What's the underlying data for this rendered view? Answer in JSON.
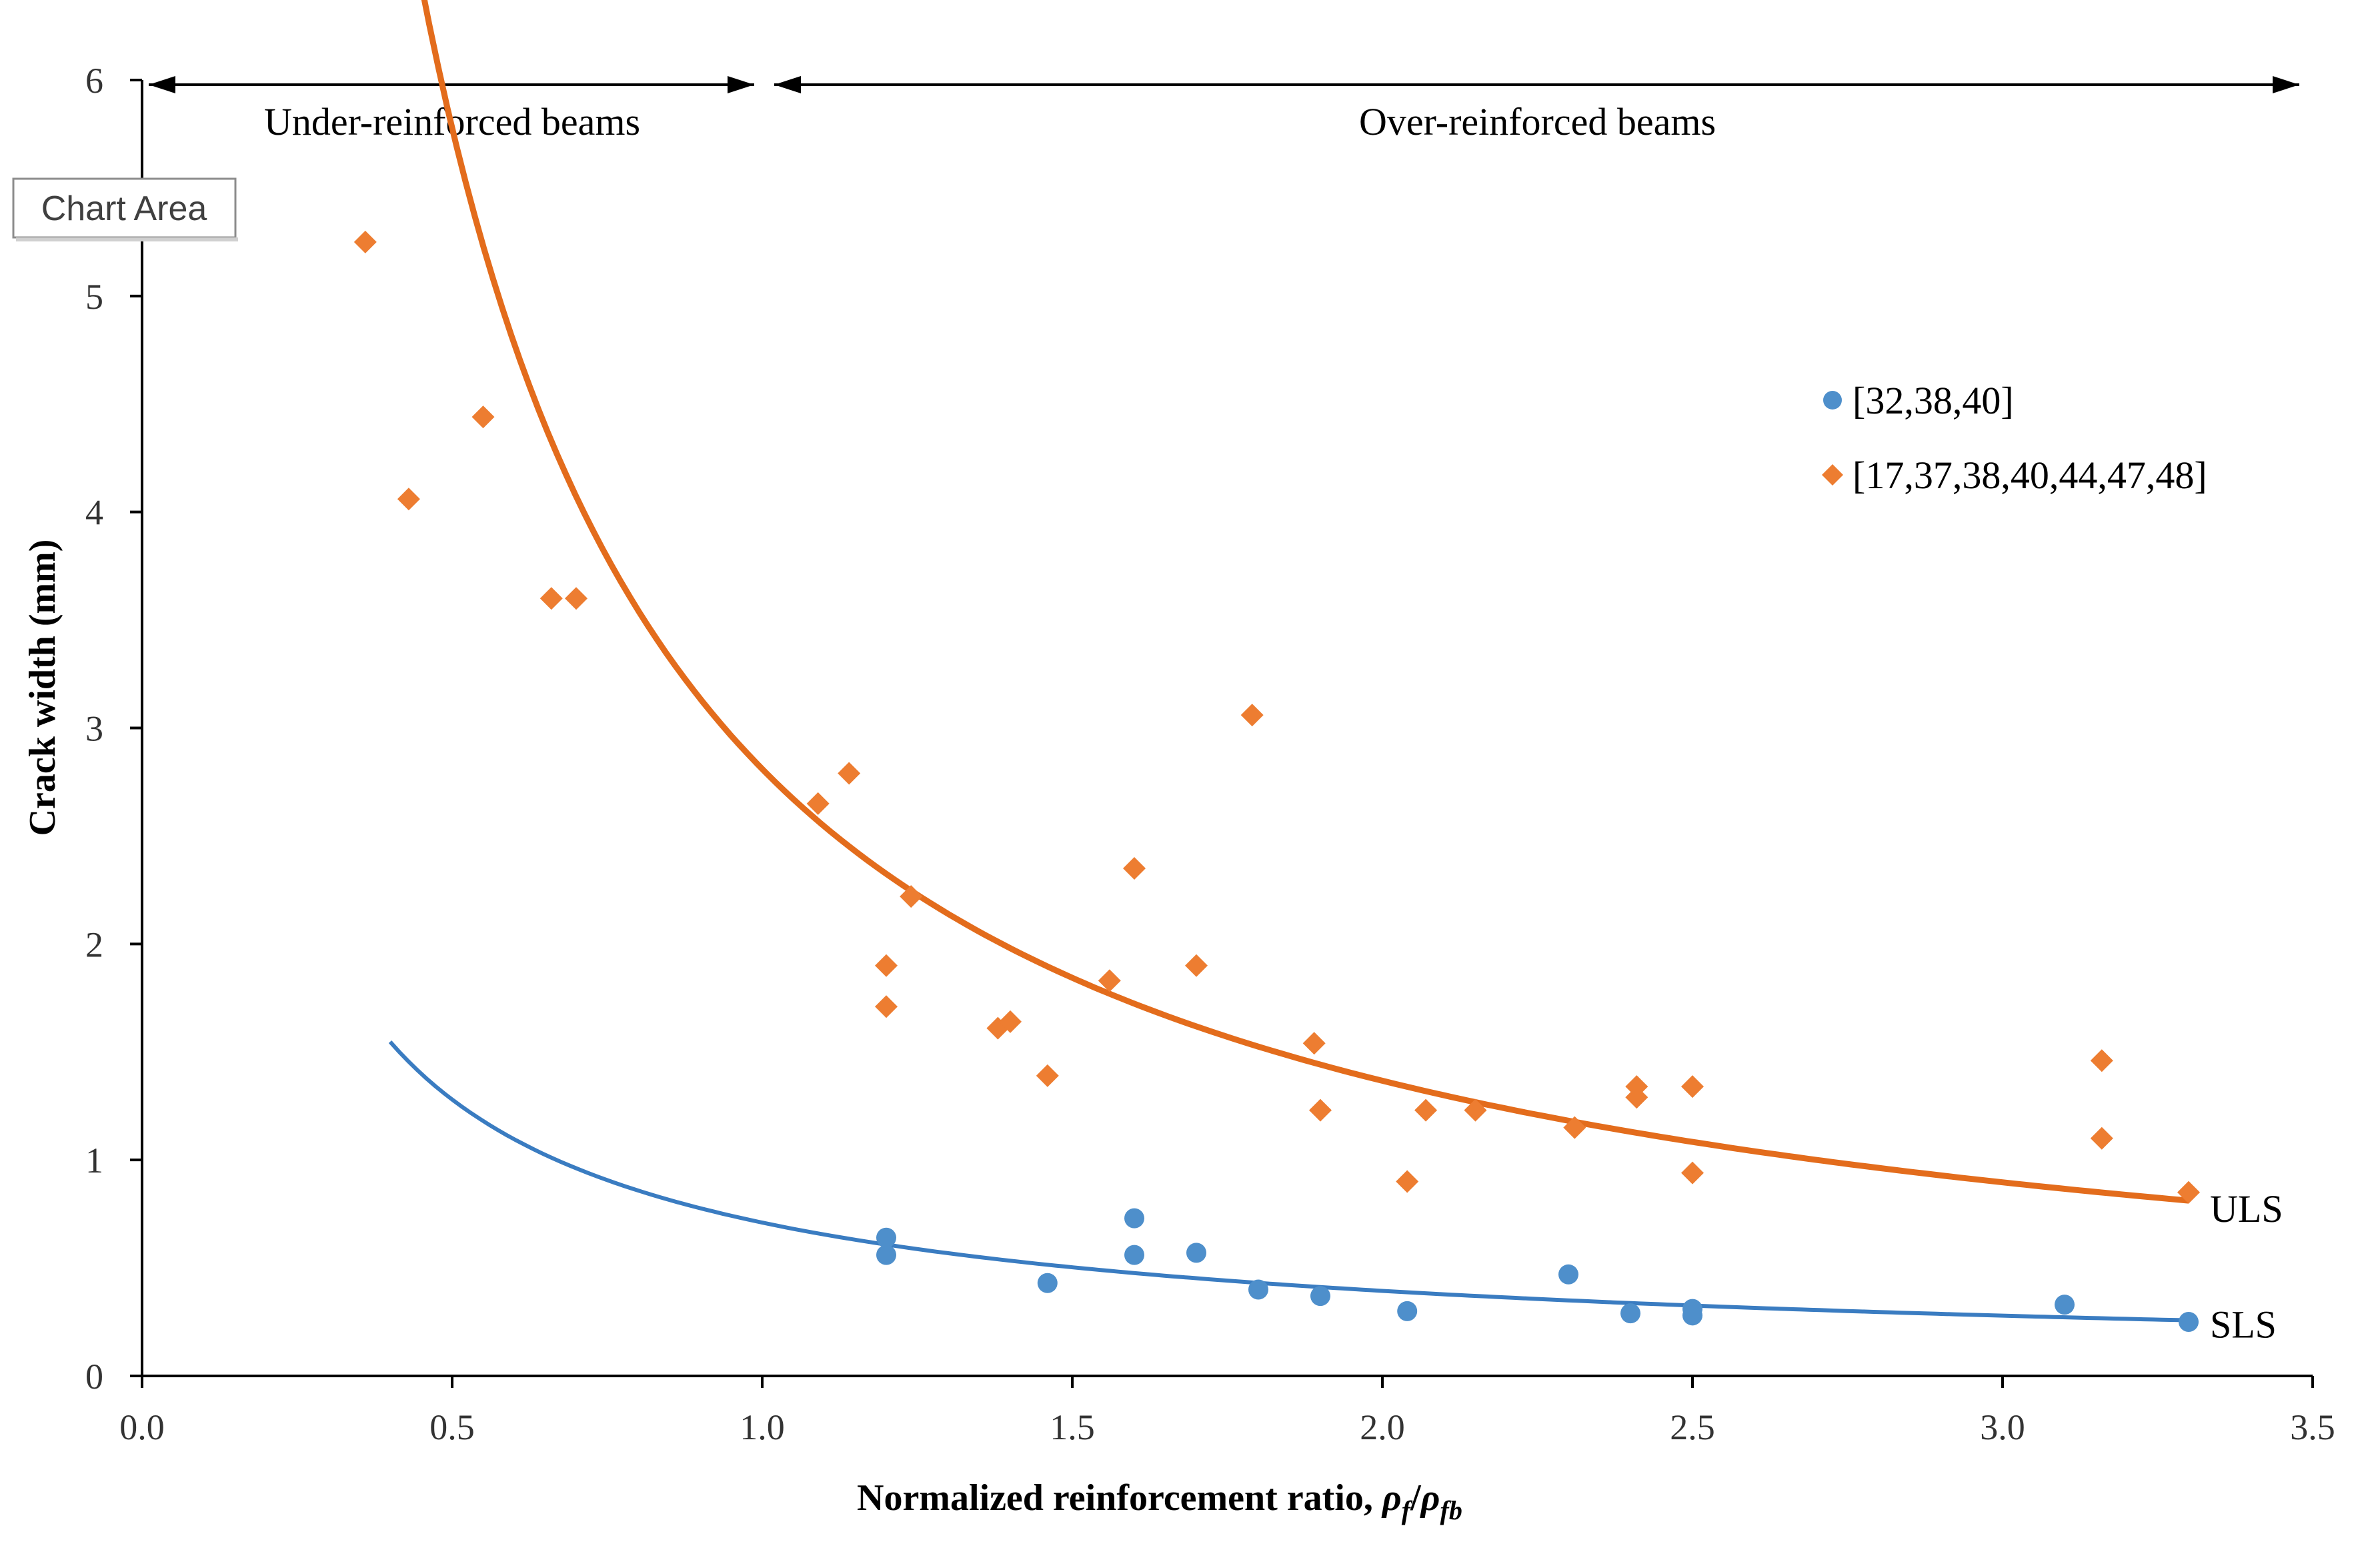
{
  "chart_data": {
    "type": "scatter",
    "title": "",
    "xlabel": "Normalized reinforcement ratio, ",
    "xlabel_symbol_num": "ρ",
    "xlabel_sub_num": "f",
    "xlabel_slash": "/",
    "xlabel_symbol_den": "ρ",
    "xlabel_sub_den": "fb",
    "ylabel": "Crack width (mm)",
    "xlim": [
      0,
      3.5
    ],
    "ylim": [
      0,
      6
    ],
    "grid": false,
    "x_ticks": [
      0,
      0.5,
      1.0,
      1.5,
      2.0,
      2.5,
      3.0,
      3.5
    ],
    "x_tick_labels": [
      "0.0",
      "0.5",
      "1.0",
      "1.5",
      "2.0",
      "2.5",
      "3.0",
      "3.5"
    ],
    "y_ticks": [
      0,
      1,
      2,
      3,
      4,
      5,
      6
    ],
    "y_tick_labels": [
      "0",
      "1",
      "2",
      "3",
      "4",
      "5",
      "6"
    ],
    "legend_position": "top-right",
    "regions": [
      {
        "label": "Under-reinforced beams",
        "x_from": 0,
        "x_to": 1.0,
        "y": 6
      },
      {
        "label": "Over-reinforced beams",
        "x_from": 1.0,
        "x_to": 3.5,
        "y": 6
      }
    ],
    "series": [
      {
        "name": "[32,38,40]",
        "marker": "circle",
        "color": "#4e8fcb",
        "points": [
          [
            1.2,
            0.64
          ],
          [
            1.2,
            0.56
          ],
          [
            1.46,
            0.43
          ],
          [
            1.6,
            0.73
          ],
          [
            1.6,
            0.56
          ],
          [
            1.7,
            0.57
          ],
          [
            1.8,
            0.4
          ],
          [
            1.9,
            0.37
          ],
          [
            2.04,
            0.3
          ],
          [
            2.3,
            0.47
          ],
          [
            2.4,
            0.29
          ],
          [
            2.5,
            0.31
          ],
          [
            2.5,
            0.28
          ],
          [
            3.1,
            0.33
          ],
          [
            3.3,
            0.25
          ]
        ]
      },
      {
        "name": "[17,37,38,40,44,47,48]",
        "marker": "diamond",
        "color": "#ed7d31",
        "points": [
          [
            0.36,
            5.25
          ],
          [
            0.43,
            4.06
          ],
          [
            0.55,
            4.44
          ],
          [
            0.66,
            3.6
          ],
          [
            0.7,
            3.6
          ],
          [
            1.09,
            2.65
          ],
          [
            1.14,
            2.79
          ],
          [
            1.2,
            1.9
          ],
          [
            1.2,
            1.71
          ],
          [
            1.24,
            2.22
          ],
          [
            1.38,
            1.61
          ],
          [
            1.4,
            1.64
          ],
          [
            1.46,
            1.39
          ],
          [
            1.56,
            1.83
          ],
          [
            1.6,
            2.35
          ],
          [
            1.7,
            1.9
          ],
          [
            1.79,
            3.06
          ],
          [
            1.89,
            1.54
          ],
          [
            1.9,
            1.23
          ],
          [
            2.04,
            0.9
          ],
          [
            2.07,
            1.23
          ],
          [
            2.15,
            1.23
          ],
          [
            2.31,
            1.15
          ],
          [
            2.41,
            1.34
          ],
          [
            2.41,
            1.29
          ],
          [
            2.5,
            1.34
          ],
          [
            2.5,
            0.94
          ],
          [
            3.16,
            1.46
          ],
          [
            3.16,
            1.1
          ],
          [
            3.3,
            0.85
          ]
        ]
      }
    ],
    "trendlines": [
      {
        "label": "ULS",
        "color": "#e36c1c",
        "form": "power",
        "a": 2.81,
        "b": -1.04,
        "x_from": 0.36,
        "x_to": 3.3
      },
      {
        "label": "SLS",
        "color": "#3a7cc1",
        "form": "power",
        "a": 0.71,
        "b": -0.85,
        "x_from": 0.4,
        "x_to": 3.3
      }
    ]
  },
  "overlay": {
    "tooltip_label": "Chart Area"
  }
}
